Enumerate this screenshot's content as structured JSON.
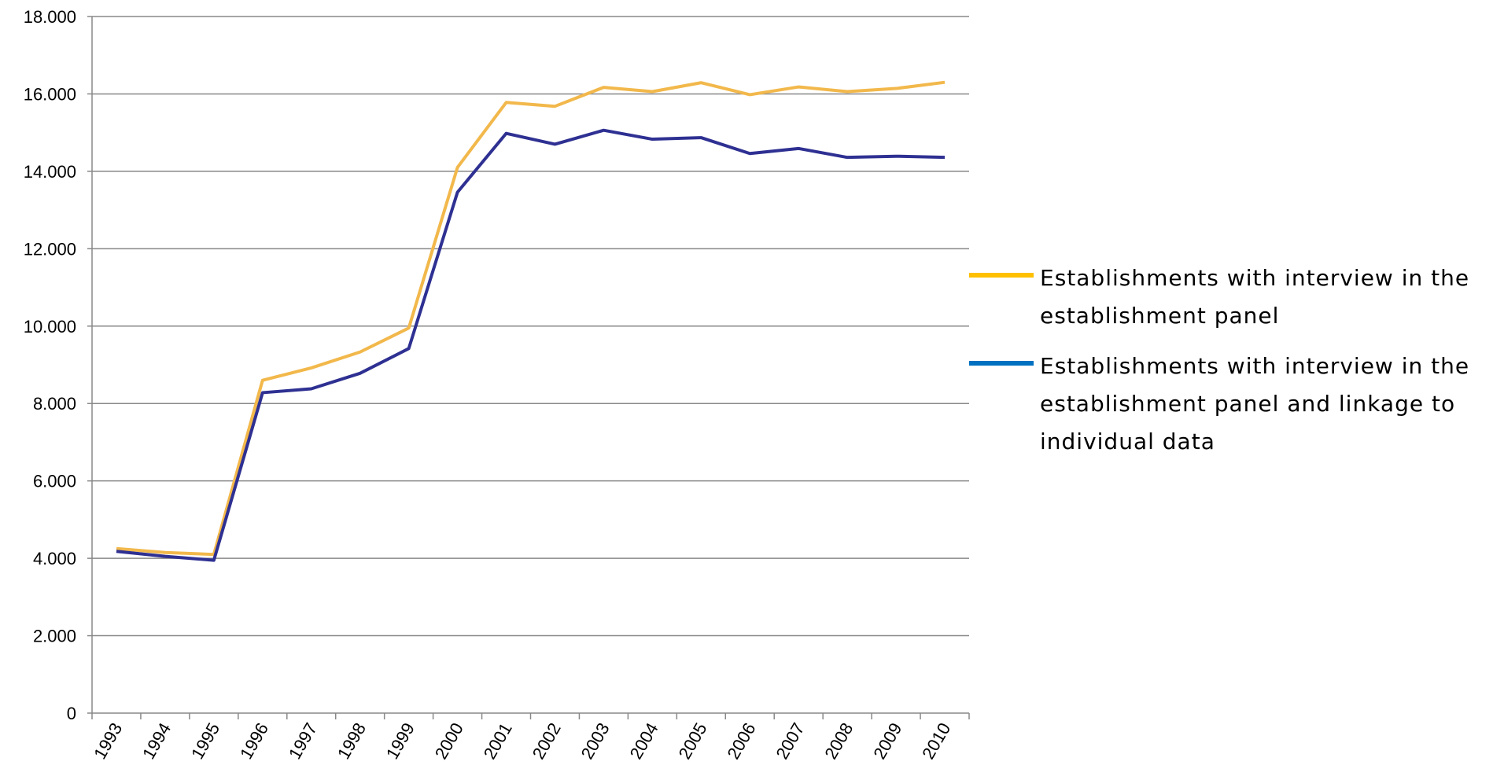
{
  "chart_data": {
    "type": "line",
    "categories": [
      "1993",
      "1994",
      "1995",
      "1996",
      "1997",
      "1998",
      "1999",
      "2000",
      "2001",
      "2002",
      "2003",
      "2004",
      "2005",
      "2006",
      "2007",
      "2008",
      "2009",
      "2010"
    ],
    "series": [
      {
        "name": "Establishments with interview in the establishment panel",
        "color": "#f2b84b",
        "legend_color": "#ffc000",
        "values": [
          4250,
          4150,
          4100,
          8600,
          8920,
          9330,
          9950,
          14100,
          15780,
          15680,
          16170,
          16060,
          16290,
          15980,
          16180,
          16060,
          16140,
          16300
        ]
      },
      {
        "name": "Establishments with interview in the establishment panel and linkage to individual data",
        "color": "#2e3092",
        "legend_color": "#0070c0",
        "values": [
          4180,
          4050,
          3950,
          8280,
          8380,
          8780,
          9420,
          13460,
          14980,
          14700,
          15060,
          14830,
          14870,
          14460,
          14590,
          14360,
          14390,
          14360
        ]
      }
    ],
    "ylim": [
      0,
      18000
    ],
    "yticks": [
      0,
      {
        "value": 2000,
        "label": "2.000"
      },
      {
        "value": 4000,
        "label": "4.000"
      },
      {
        "value": 6000,
        "label": "6.000"
      },
      {
        "value": 8000,
        "label": "8.000"
      },
      {
        "value": 10000,
        "label": "10.000"
      },
      {
        "value": 12000,
        "label": "12.000"
      },
      {
        "value": 14000,
        "label": "14.000"
      },
      {
        "value": 16000,
        "label": "16.000"
      },
      {
        "value": 18000,
        "label": "18.000"
      }
    ],
    "grid": true,
    "legend": "right"
  }
}
